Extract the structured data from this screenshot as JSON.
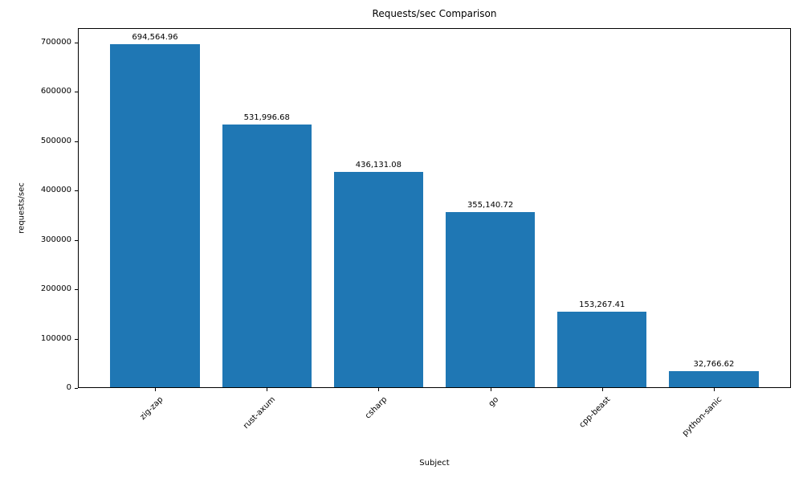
{
  "chart_data": {
    "type": "bar",
    "title": "Requests/sec Comparison",
    "xlabel": "Subject",
    "ylabel": "requests/sec",
    "categories": [
      "zig-zap",
      "rust-axum",
      "csharp",
      "go",
      "cpp-beast",
      "python-sanic"
    ],
    "values": [
      694564.96,
      531996.68,
      436131.08,
      355140.72,
      153267.41,
      32766.62
    ],
    "value_labels": [
      "694,564.96",
      "531,996.68",
      "436,131.08",
      "355,140.72",
      "153,267.41",
      "32,766.62"
    ],
    "y_ticks": [
      0,
      100000,
      200000,
      300000,
      400000,
      500000,
      600000,
      700000
    ],
    "ylim": [
      0,
      729293
    ],
    "bar_color": "#1f77b4",
    "bar_rel_width": 0.8,
    "x_tick_rotation_deg": 45,
    "grid": false,
    "legend_position": "none"
  }
}
